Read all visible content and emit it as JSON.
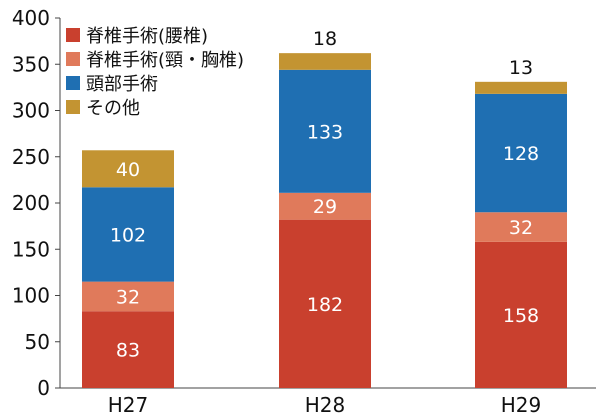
{
  "chart_data": {
    "type": "bar",
    "stacked": true,
    "categories": [
      "H27",
      "H28",
      "H29"
    ],
    "series": [
      {
        "name": "脊椎手術(腰椎)",
        "values": [
          83,
          182,
          158
        ],
        "color": "#c9402e",
        "label_color": "#ffffff"
      },
      {
        "name": "脊椎手術(頸・胸椎)",
        "values": [
          32,
          29,
          32
        ],
        "color": "#e07a5b",
        "label_color": "#ffffff"
      },
      {
        "name": "頭部手術",
        "values": [
          102,
          133,
          128
        ],
        "color": "#1f6fb2",
        "label_color": "#ffffff"
      },
      {
        "name": "その他",
        "values": [
          40,
          18,
          13
        ],
        "color": "#c39432",
        "label_color": "#ffffff"
      }
    ],
    "ylim": [
      0,
      400
    ],
    "yticks": [
      0,
      50,
      100,
      150,
      200,
      250,
      300,
      350,
      400
    ],
    "ytick_labels": [
      "0",
      "50",
      "100",
      "150",
      "200",
      "250",
      "300",
      "350",
      "400"
    ],
    "grid": false,
    "legend_position": "top-left",
    "title": "",
    "xlabel": "",
    "ylabel": ""
  }
}
